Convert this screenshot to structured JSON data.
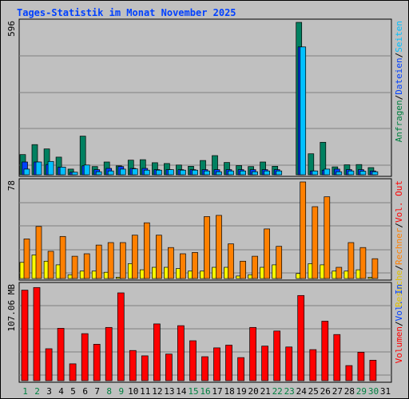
{
  "title": "Tages-Statistik im Monat November 2025",
  "chart_data": {
    "type": "bar",
    "categories": [
      "1",
      "2",
      "3",
      "4",
      "5",
      "6",
      "7",
      "8",
      "9",
      "10",
      "11",
      "12",
      "13",
      "14",
      "15",
      "16",
      "17",
      "18",
      "19",
      "20",
      "21",
      "22",
      "23",
      "24",
      "25",
      "26",
      "27",
      "28",
      "29",
      "30",
      "31"
    ],
    "weekend_days": [
      "1",
      "2",
      "8",
      "9",
      "15",
      "16",
      "22",
      "23",
      "29",
      "30"
    ],
    "panels": [
      {
        "id": "requests",
        "ymax_label": "596",
        "ymax": 596,
        "right_labels": [
          {
            "text": "Anfragen",
            "color": "#008040"
          },
          {
            "text": "/",
            "color": "#000000"
          },
          {
            "text": "Dateien",
            "color": "#0040ff"
          },
          {
            "text": "/",
            "color": "#000000"
          },
          {
            "text": "Seiten",
            "color": "#00c0ff"
          }
        ],
        "series": [
          {
            "name": "Anfragen",
            "color": "#008060",
            "values": [
              79,
              118,
              101,
              69,
              22,
              151,
              32,
              50,
              35,
              57,
              59,
              47,
              44,
              38,
              33,
              56,
              75,
              48,
              36,
              32,
              50,
              33,
              0,
              596,
              82,
              127,
              31,
              39,
              40,
              28,
              0
            ]
          },
          {
            "name": "Dateien",
            "color": "#0040ff",
            "values": [
              50,
              50,
              40,
              30,
              10,
              35,
              20,
              25,
              32,
              25,
              25,
              20,
              20,
              20,
              20,
              20,
              20,
              20,
              20,
              20,
              20,
              20,
              0,
              500,
              15,
              18,
              22,
              20,
              20,
              15,
              0
            ]
          },
          {
            "name": "Seiten",
            "color": "#00c0ff",
            "values": [
              22,
              50,
              52,
              30,
              10,
              38,
              12,
              15,
              22,
              23,
              18,
              18,
              20,
              18,
              18,
              15,
              12,
              15,
              15,
              12,
              15,
              15,
              0,
              500,
              15,
              22,
              12,
              15,
              14,
              12,
              0
            ]
          }
        ]
      },
      {
        "id": "visits",
        "ymax_label": "78",
        "ymax": 78,
        "right_labels": [
          {
            "text": "Besuche",
            "color": "#e0c000"
          },
          {
            "text": "/",
            "color": "#000000"
          },
          {
            "text": "Rechner",
            "color": "#ff8000"
          },
          {
            "text": "/",
            "color": "#000000"
          },
          {
            "text": "Vol. Out",
            "color": "#ff0000"
          }
        ],
        "series": [
          {
            "name": "Besuche",
            "color": "#ffff00",
            "values": [
              13,
              19,
              14,
              11,
              3,
              6,
              6,
              5,
              1,
              12,
              7,
              9,
              9,
              8,
              6,
              6,
              9,
              9,
              2,
              3,
              9,
              11,
              0,
              4,
              12,
              11,
              6,
              6,
              7,
              1,
              0
            ]
          },
          {
            "name": "Rechner",
            "color": "#ff8000",
            "values": [
              32,
              42,
              22,
              34,
              18,
              20,
              27,
              29,
              29,
              35,
              45,
              35,
              25,
              20,
              21,
              50,
              51,
              28,
              14,
              18,
              40,
              26,
              0,
              78,
              58,
              66,
              9,
              29,
              25,
              16,
              0
            ]
          }
        ]
      },
      {
        "id": "volume",
        "ymax_label": "107.06 MB",
        "ymax": 107.06,
        "right_labels": [
          {
            "text": "Volumen",
            "color": "#ff0000"
          },
          {
            "text": "/",
            "color": "#000000"
          },
          {
            "text": "Vol. In",
            "color": "#0040ff"
          }
        ],
        "series": [
          {
            "name": "Volumen",
            "color": "#ff0000",
            "values": [
              102,
              105,
              36,
              59,
              19,
              53,
              41,
              60,
              99,
              34,
              28,
              64,
              30,
              62,
              45,
              27,
              37,
              40,
              26,
              60,
              39,
              56,
              38,
              96,
              35,
              67,
              52,
              17,
              32,
              23,
              0
            ]
          }
        ]
      }
    ]
  }
}
